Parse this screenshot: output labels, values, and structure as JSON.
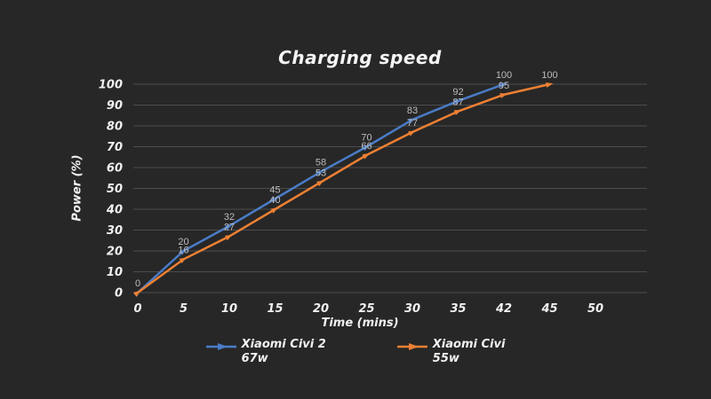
{
  "chart_data": {
    "type": "line",
    "title": "Charging speed",
    "xlabel": "Time (mins)",
    "ylabel": "Power (%)",
    "x_ticks": [
      "0",
      "5",
      "10",
      "15",
      "20",
      "25",
      "30",
      "35",
      "42",
      "45",
      "50"
    ],
    "y_ticks": [
      0,
      10,
      20,
      30,
      40,
      50,
      60,
      70,
      80,
      90,
      100
    ],
    "ylim": [
      0,
      100
    ],
    "grid": "horizontal",
    "legend_position": "bottom-center",
    "series": [
      {
        "name": "Xiaomi Civi 2",
        "watt": "67w",
        "color": "#4a7cc7",
        "x": [
          "0",
          "5",
          "10",
          "15",
          "20",
          "25",
          "30",
          "35",
          "42"
        ],
        "values": [
          0,
          20,
          32,
          45,
          58,
          70,
          83,
          92,
          100
        ]
      },
      {
        "name": "Xiaomi Civi",
        "watt": "55w",
        "color": "#ed8033",
        "x": [
          "0",
          "5",
          "10",
          "15",
          "20",
          "25",
          "30",
          "35",
          "42",
          "45"
        ],
        "values": [
          0,
          16,
          27,
          40,
          53,
          66,
          77,
          87,
          95,
          100
        ],
        "skip_first_label": true
      }
    ]
  },
  "colors": {
    "background": "#272727",
    "grid": "#4d4d4d",
    "tick_text": "#f0f0f0",
    "data_label": "#bdbdbd"
  }
}
